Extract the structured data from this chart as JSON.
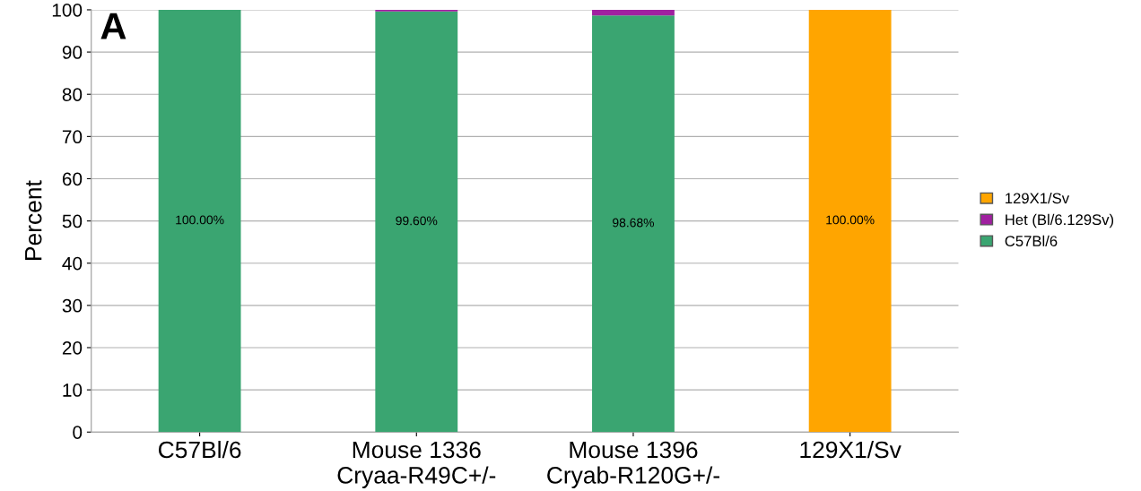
{
  "chart_data": {
    "type": "bar",
    "stacked": true,
    "ylabel": "Percent",
    "categories": [
      "C57Bl/6",
      "Mouse 1336\nCryaa-R49C+/-",
      "Mouse 1396\nCryab-R120G+/-",
      "129X1/Sv"
    ],
    "series": [
      {
        "name": "C57Bl/6",
        "color": "#3aa571",
        "values": [
          100,
          99.6,
          98.68,
          0
        ],
        "value_labels": [
          "100.00%",
          "99.60%",
          "98.68%",
          null
        ]
      },
      {
        "name": "Het (Bl/6.129Sv)",
        "color": "#a020a0",
        "values": [
          0,
          0.4,
          1.32,
          0
        ]
      },
      {
        "name": "129X1/Sv",
        "color": "#ffa500",
        "values": [
          0,
          0,
          0,
          100
        ],
        "value_labels": [
          null,
          null,
          null,
          "100.00%"
        ]
      }
    ],
    "ylim": [
      0,
      100
    ],
    "yticks": [
      0,
      10,
      20,
      30,
      40,
      50,
      60,
      70,
      80,
      90,
      100
    ],
    "grid": "y",
    "legend": "right",
    "annotations": [
      "A"
    ]
  }
}
